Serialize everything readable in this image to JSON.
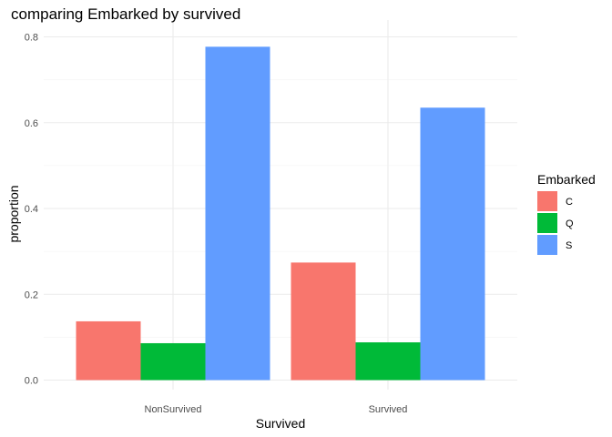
{
  "chart_data": {
    "type": "bar",
    "title": "comparing Embarked by survived",
    "xlabel": "Survived",
    "ylabel": "proportion",
    "categories": [
      "NonSurvived",
      "Survived"
    ],
    "series": [
      {
        "name": "C",
        "values": [
          0.137,
          0.274
        ],
        "color": "#F8766D"
      },
      {
        "name": "Q",
        "values": [
          0.086,
          0.088
        ],
        "color": "#00BA38"
      },
      {
        "name": "S",
        "values": [
          0.777,
          0.635
        ],
        "color": "#619CFF"
      }
    ],
    "ylim": [
      0,
      0.8
    ],
    "yticks": [
      0.0,
      0.2,
      0.4,
      0.6,
      0.8
    ],
    "ytick_labels": [
      "0.0",
      "0.2",
      "0.4",
      "0.6",
      "0.8"
    ],
    "legend": {
      "title": "Embarked",
      "position": "right"
    },
    "grid": true
  }
}
